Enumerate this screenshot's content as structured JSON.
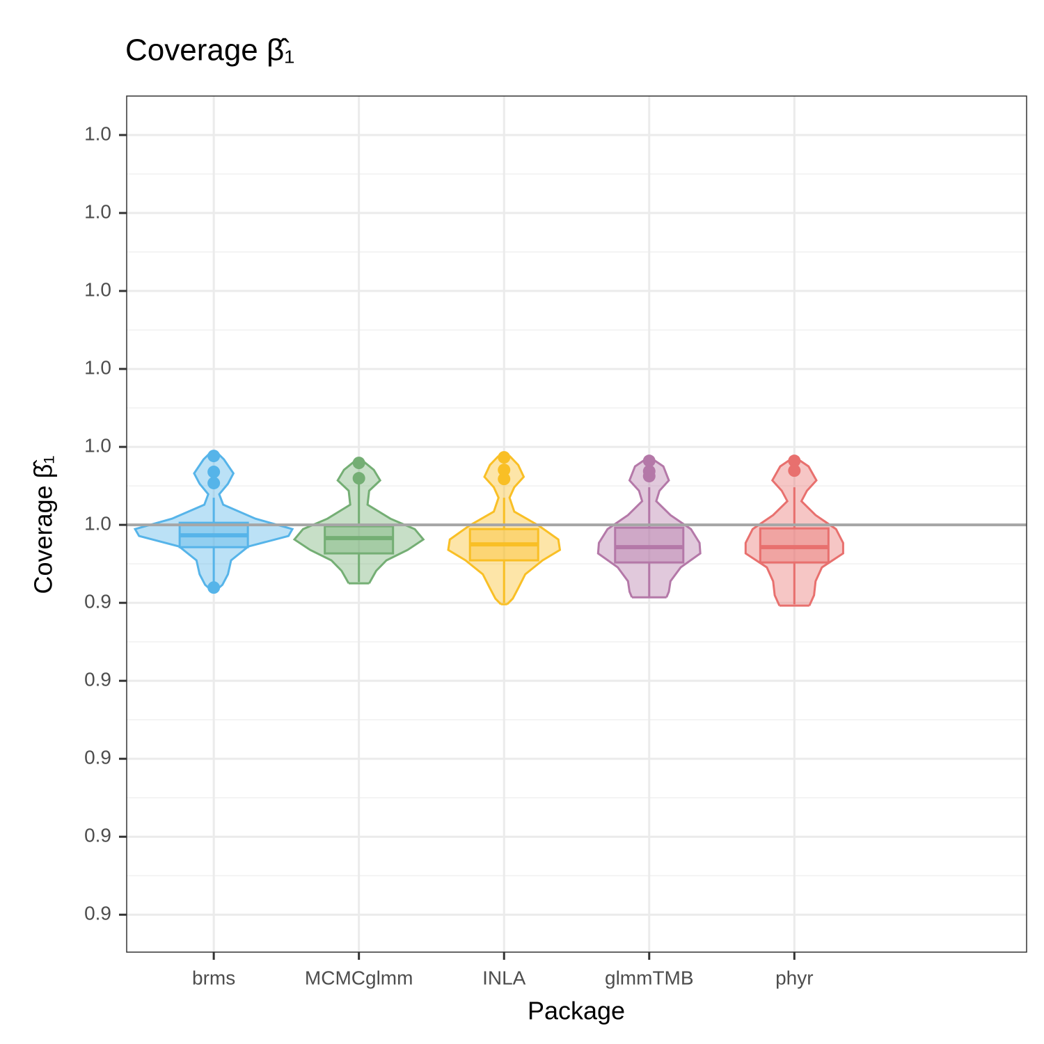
{
  "chart_data": {
    "type": "violin",
    "title": "Coverage β̂₁",
    "x_label": "Package",
    "y_label": "Coverage β̂₁",
    "ylim": [
      0.8952,
      1.005
    ],
    "yticks": [
      {
        "value": 0.9,
        "label": "0.9"
      },
      {
        "value": 0.91,
        "label": "0.9"
      },
      {
        "value": 0.92,
        "label": "0.9"
      },
      {
        "value": 0.93,
        "label": "0.9"
      },
      {
        "value": 0.94,
        "label": "0.9"
      },
      {
        "value": 0.95,
        "label": "1.0"
      },
      {
        "value": 0.96,
        "label": "1.0"
      },
      {
        "value": 0.97,
        "label": "1.0"
      },
      {
        "value": 0.98,
        "label": "1.0"
      },
      {
        "value": 0.99,
        "label": "1.0"
      },
      {
        "value": 1.0,
        "label": "1.0"
      }
    ],
    "grid": true,
    "minor_grid": true,
    "reference_line": {
      "value": 0.95,
      "color": "#a6a6a6"
    },
    "series": [
      {
        "name": "brms",
        "color": "#56b4e9",
        "violin": {
          "y": [
            0.95929,
            0.95839,
            0.95661,
            0.95527,
            0.95393,
            0.95259,
            0.9508,
            0.94946,
            0.94857,
            0.94723,
            0.94545,
            0.94366,
            0.94232,
            0.94161
          ],
          "density": [
            0.04,
            0.13,
            0.25,
            0.18,
            0.07,
            0.12,
            0.53,
            1.0,
            0.95,
            0.44,
            0.22,
            0.18,
            0.11,
            0.03
          ]
        },
        "box": {
          "min": 0.94205,
          "q1": 0.94714,
          "median": 0.94866,
          "q3": 0.95027,
          "max": 0.95348
        },
        "outliers": [
          0.94196,
          0.95536,
          0.95679,
          0.95884
        ]
      },
      {
        "name": "MCMCglmm",
        "color": "#74ae74",
        "violin": {
          "y": [
            0.95821,
            0.95705,
            0.95571,
            0.95438,
            0.95259,
            0.9508,
            0.94946,
            0.94813,
            0.94679,
            0.94545,
            0.94411,
            0.9425
          ],
          "density": [
            0.05,
            0.19,
            0.27,
            0.13,
            0.11,
            0.4,
            0.71,
            0.82,
            0.62,
            0.35,
            0.22,
            0.13
          ]
        },
        "box": {
          "min": 0.94268,
          "q1": 0.94634,
          "median": 0.9483,
          "q3": 0.94982,
          "max": 0.95527
        },
        "outliers": [
          0.95795,
          0.95598
        ]
      },
      {
        "name": "INLA",
        "color": "#f9bf25",
        "violin": {
          "y": [
            0.95884,
            0.95768,
            0.95616,
            0.95482,
            0.95348,
            0.9517,
            0.94991,
            0.94813,
            0.94679,
            0.94545,
            0.94366,
            0.94188,
            0.94054,
            0.93982
          ],
          "density": [
            0.07,
            0.18,
            0.25,
            0.13,
            0.07,
            0.13,
            0.44,
            0.69,
            0.71,
            0.49,
            0.27,
            0.18,
            0.11,
            0.04
          ]
        },
        "box": {
          "min": 0.94,
          "q1": 0.94545,
          "median": 0.9475,
          "q3": 0.94946,
          "max": 0.95348
        },
        "outliers": [
          0.95866,
          0.95705,
          0.95589
        ]
      },
      {
        "name": "glmmTMB",
        "color": "#b478a8",
        "violin": {
          "y": [
            0.95839,
            0.9575,
            0.95571,
            0.95438,
            0.95304,
            0.95125,
            0.94946,
            0.94768,
            0.94634,
            0.94455,
            0.94277,
            0.94143,
            0.94071
          ],
          "density": [
            0.05,
            0.18,
            0.25,
            0.13,
            0.09,
            0.27,
            0.53,
            0.64,
            0.65,
            0.4,
            0.27,
            0.25,
            0.22
          ]
        },
        "box": {
          "min": 0.9408,
          "q1": 0.94518,
          "median": 0.94714,
          "q3": 0.94964,
          "max": 0.95482
        },
        "outliers": [
          0.95821,
          0.95688,
          0.95625
        ]
      },
      {
        "name": "phyr",
        "color": "#e8706e",
        "violin": {
          "y": [
            0.95839,
            0.9575,
            0.95571,
            0.95438,
            0.95304,
            0.95125,
            0.94946,
            0.94768,
            0.94634,
            0.94455,
            0.94277,
            0.94098,
            0.93964
          ],
          "density": [
            0.05,
            0.18,
            0.28,
            0.16,
            0.09,
            0.27,
            0.53,
            0.62,
            0.62,
            0.35,
            0.27,
            0.25,
            0.19
          ]
        },
        "box": {
          "min": 0.93982,
          "q1": 0.94518,
          "median": 0.94714,
          "q3": 0.94955,
          "max": 0.95482
        },
        "outliers": [
          0.95821,
          0.95696
        ]
      }
    ]
  }
}
